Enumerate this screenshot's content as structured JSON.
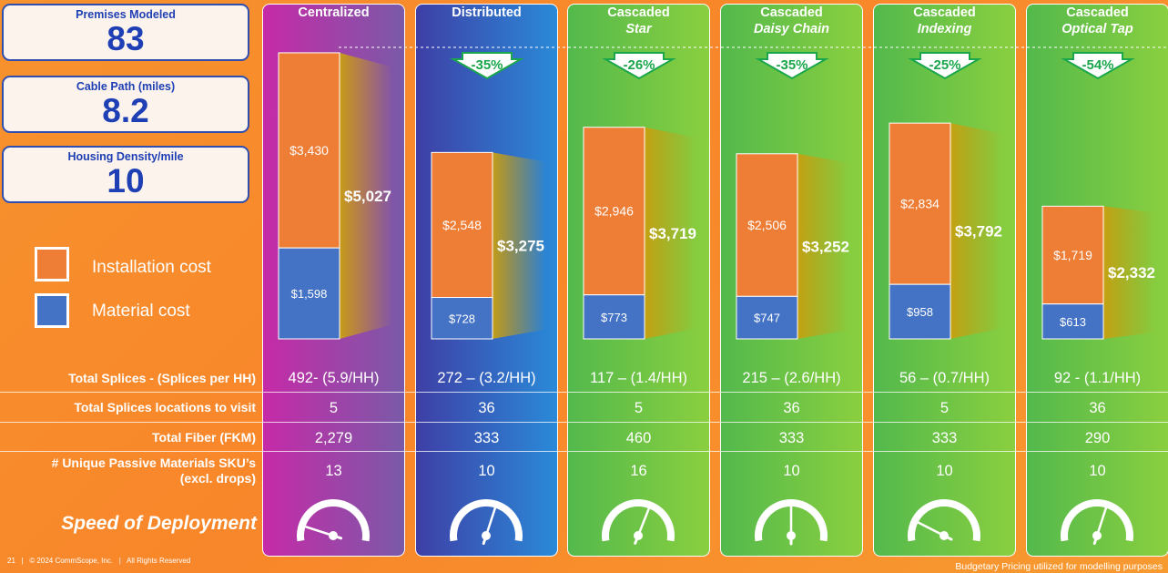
{
  "stats": [
    {
      "label": "Premises Modeled",
      "value": "83"
    },
    {
      "label": "Cable Path (miles)",
      "value": "8.2"
    },
    {
      "label": "Housing Density/mile",
      "value": "10"
    }
  ],
  "legend": [
    {
      "label": "Installation cost",
      "color": "#ee7d35"
    },
    {
      "label": "Material cost",
      "color": "#4472c4"
    }
  ],
  "row_labels": {
    "splices": "Total Splices - (Splices per HH)",
    "locations": "Total Splices locations to visit",
    "fiber": "Total Fiber (FKM)",
    "sku_line1": "# Unique Passive Materials SKU’s",
    "sku_line2": "(excl. drops)",
    "speed": "Speed of Deployment"
  },
  "columns": [
    {
      "title": "Centralized",
      "subtitle": "",
      "splices": "492- (5.9/HH)",
      "locations": "5",
      "fiber": "2,279",
      "skus": "13"
    },
    {
      "title": "Distributed",
      "subtitle": "",
      "splices": "272 – (3.2/HH)",
      "locations": "36",
      "fiber": "333",
      "skus": "10"
    },
    {
      "title": "Cascaded",
      "subtitle": "Star",
      "splices": "117 – (1.4/HH)",
      "locations": "5",
      "fiber": "460",
      "skus": "16"
    },
    {
      "title": "Cascaded",
      "subtitle": "Daisy Chain",
      "splices": "215 – (2.6/HH)",
      "locations": "36",
      "fiber": "333",
      "skus": "10"
    },
    {
      "title": "Cascaded",
      "subtitle": "Indexing",
      "splices": "56 – (0.7/HH)",
      "locations": "5",
      "fiber": "333",
      "skus": "10"
    },
    {
      "title": "Cascaded",
      "subtitle": "Optical Tap",
      "splices": "92 - (1.1/HH)",
      "locations": "36",
      "fiber": "290",
      "skus": "10"
    }
  ],
  "chart_data": {
    "type": "bar",
    "stacked": true,
    "categories": [
      "Centralized",
      "Distributed",
      "Cascaded Star",
      "Cascaded Daisy Chain",
      "Cascaded Indexing",
      "Cascaded Optical Tap"
    ],
    "series": [
      {
        "name": "Material cost",
        "values": [
          1598,
          728,
          773,
          747,
          958,
          613
        ],
        "labels": [
          "$1,598",
          "$728",
          "$773",
          "$747",
          "$958",
          "$613"
        ],
        "color": "#4472c4"
      },
      {
        "name": "Installation cost",
        "values": [
          3430,
          2548,
          2946,
          2506,
          2834,
          1719
        ],
        "labels": [
          "$3,430",
          "$2,548",
          "$2,946",
          "$2,506",
          "$2,834",
          "$1,719"
        ],
        "color": "#ee7d35"
      }
    ],
    "totals": [
      5027,
      3275,
      3719,
      3252,
      3792,
      2332
    ],
    "total_labels": [
      "$5,027",
      "$3,275",
      "$3,719",
      "$3,252",
      "$3,792",
      "$2,332"
    ],
    "reductions": [
      "",
      "-35%",
      "-26%",
      "-35%",
      "-25%",
      "-54%"
    ],
    "speed_gauge_levels": [
      0.1,
      0.6,
      0.62,
      0.5,
      0.15,
      0.6
    ],
    "ylim": [
      0,
      5027
    ]
  },
  "footer": {
    "left": "21   |   © 2024 CommScope, Inc.   |   All Rights Reserved",
    "right": "Budgetary Pricing utilized for modelling purposes"
  },
  "colors": {
    "col_backgrounds": [
      [
        "#c62aa7",
        "#7a5aa8"
      ],
      [
        "#3e3fa6",
        "#2a8ad8"
      ],
      [
        "#53b94c",
        "#8acf3f"
      ],
      [
        "#53b94c",
        "#8acf3f"
      ],
      [
        "#53b94c",
        "#8acf3f"
      ],
      [
        "#53b94c",
        "#8acf3f"
      ]
    ],
    "arrow_fill": "#ffffff",
    "arrow_stroke": "#1aa64a",
    "arrow_text": "#1aa64a"
  }
}
